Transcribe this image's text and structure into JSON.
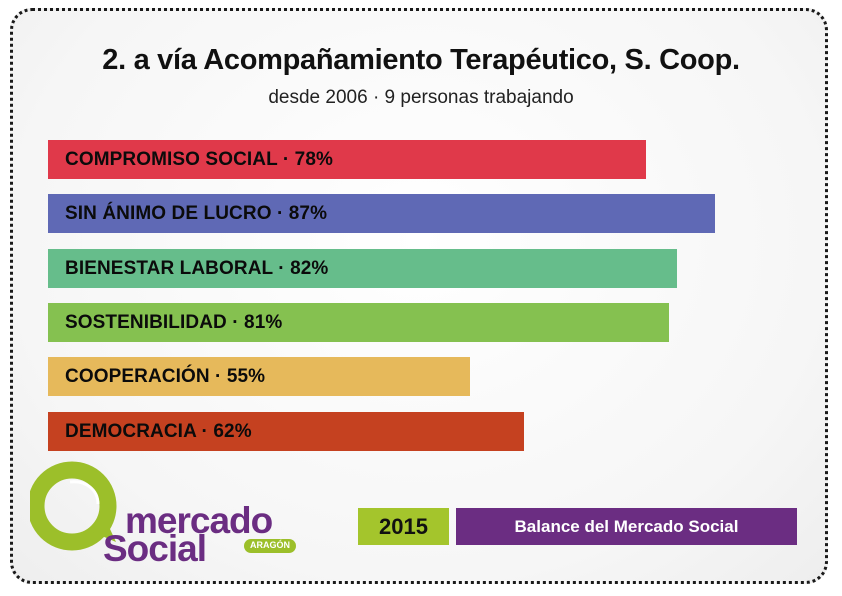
{
  "title": "2. a vía Acompañamiento Terapéutico, S. Coop.",
  "subtitle": "desde 2006 · 9 personas trabajando",
  "chart_data": {
    "type": "bar",
    "orientation": "horizontal",
    "title": "",
    "xlabel": "",
    "ylabel": "",
    "xlim": [
      0,
      100
    ],
    "categories": [
      "COMPROMISO SOCIAL",
      "SIN ÁNIMO DE LUCRO",
      "BIENESTAR LABORAL",
      "SOSTENIBILIDAD",
      "COOPERACIÓN",
      "DEMOCRACIA"
    ],
    "values": [
      78,
      87,
      82,
      81,
      55,
      62
    ],
    "labels": [
      "COMPROMISO SOCIAL · 78%",
      "SIN ÁNIMO DE LUCRO · 87%",
      "BIENESTAR LABORAL · 82%",
      "SOSTENIBILIDAD · 81%",
      "COOPERACIÓN · 55%",
      "DEMOCRACIA · 62%"
    ],
    "colors": [
      "#e0394a",
      "#5f69b5",
      "#66bd8b",
      "#85c150",
      "#e6b95b",
      "#c54120"
    ]
  },
  "logo": {
    "word1": "mercado",
    "word2": "Social",
    "tag": "ARAGÓN",
    "green": "#9cbf2a",
    "purple": "#6b2d82"
  },
  "footer": {
    "year": "2015",
    "balance_label": "Balance del Mercado Social"
  }
}
